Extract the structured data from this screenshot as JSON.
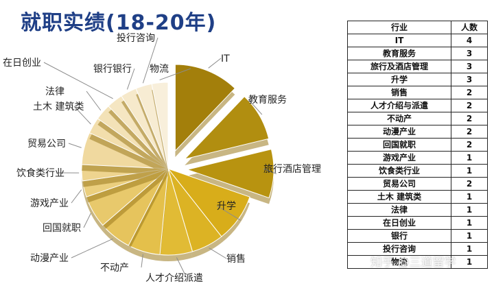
{
  "title": "就职实绩(18-20年)",
  "watermark": "知乎 @三道留学",
  "colors": {
    "title": "#1f3f86",
    "dark_gold": "#a37f0b",
    "gold": "#d2a316",
    "light_gold": "#e9c97a",
    "cream": "#f7ebd1"
  },
  "chart_data": {
    "type": "pie",
    "title": "就职实绩(18-20年)",
    "exploded": [
      "IT",
      "教育服务",
      "旅行酒店管理"
    ],
    "slices": [
      {
        "label": "IT",
        "value": 4
      },
      {
        "label": "教育服务",
        "value": 3
      },
      {
        "label": "旅行酒店管理",
        "value": 3
      },
      {
        "label": "升学",
        "value": 3
      },
      {
        "label": "销售",
        "value": 2
      },
      {
        "label": "人才介绍派遣",
        "value": 2
      },
      {
        "label": "不动产",
        "value": 2
      },
      {
        "label": "动漫产业",
        "value": 2
      },
      {
        "label": "回国就职",
        "value": 2
      },
      {
        "label": "游戏产业",
        "value": 1
      },
      {
        "label": "饮食类行业",
        "value": 1
      },
      {
        "label": "贸易公司",
        "value": 2
      },
      {
        "label": "土木 建筑类",
        "value": 1
      },
      {
        "label": "法律",
        "value": 1
      },
      {
        "label": "在日创业",
        "value": 1
      },
      {
        "label": "银行银行",
        "value": 1
      },
      {
        "label": "投行咨询",
        "value": 1
      },
      {
        "label": "物流",
        "value": 1
      }
    ]
  },
  "table": {
    "headers": [
      "行业",
      "人数"
    ],
    "rows": [
      [
        "IT",
        "4"
      ],
      [
        "教育服务",
        "3"
      ],
      [
        "旅行及酒店管理",
        "3"
      ],
      [
        "升学",
        "3"
      ],
      [
        "销售",
        "2"
      ],
      [
        "人才介绍与派遣",
        "2"
      ],
      [
        "不动产",
        "2"
      ],
      [
        "动漫产业",
        "2"
      ],
      [
        "回国就职",
        "2"
      ],
      [
        "游戏产业",
        "1"
      ],
      [
        "饮食类行业",
        "1"
      ],
      [
        "贸易公司",
        "2"
      ],
      [
        "土木 建筑类",
        "1"
      ],
      [
        "法律",
        "1"
      ],
      [
        "在日创业",
        "1"
      ],
      [
        "银行",
        "1"
      ],
      [
        "投行咨询",
        "1"
      ],
      [
        "物流",
        "1"
      ]
    ]
  }
}
